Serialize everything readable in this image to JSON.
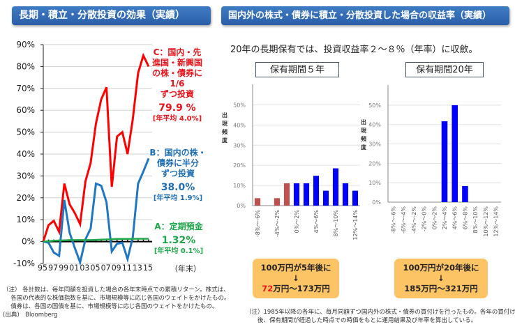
{
  "left_panel": {
    "banner": "長期・積立・分散投資の効果（実績）",
    "labels": {
      "C": {
        "line1": "C：国内・先",
        "line2": "進国・新興国",
        "line3": "の株・債券に",
        "line4": "1/6",
        "line5": "ずつ投資",
        "result": "79.9 %",
        "annual": "[年平均 4.0%]",
        "color": "#e8131a"
      },
      "B": {
        "line1": "B：国内の株・",
        "line2": "債券に半分",
        "line3": "ずつ投資",
        "result": "38.0%",
        "annual": "[年平均 1.9%]",
        "color": "#1f6fb5"
      },
      "A": {
        "line1": "A：定期預金",
        "result": "1.32%",
        "annual": "[年平均 0.1%]",
        "color": "#1ea64a"
      }
    },
    "x_unit_label": "（年末）",
    "note": [
      "（注） 各計数は、毎年同額を投資した場合の各年末時点での累積リターン。株式は、",
      "　 各国の代表的な株価指数を基に、市場規模等に応じ各国のウェイトをかけたもの。",
      "　 債券は、各国の国債を基に、市場規模等に応じ各国のウェイトをかけたもの。",
      "(出典)　Bloomberg"
    ]
  },
  "right_panel": {
    "banner": "国内外の株式・債券に積立・分散投資した場合の収益率（実績）",
    "subtitle": "20年の長期保有では、投資収益率２～８％（年率）に収斂。",
    "y_axis_label": [
      "出",
      "現",
      "頻",
      "度"
    ],
    "box_5y": {
      "line1": "100万円が5年後に",
      "arrow": "↓",
      "low": "72",
      "rest": "万円～173万円"
    },
    "box_20y": {
      "line1": "100万円が20年後に",
      "arrow": "↓",
      "text": "185万円～321万円"
    },
    "note": [
      "（注）1985年以降の各年に、毎月同額ずつ国内外の株式・債券の買付けを行ったもの。各年の買付け",
      "　　後、保有期間が経過した時点での時価をもとに運用結果及び年率を算出している。"
    ]
  },
  "chart_data": [
    {
      "type": "line",
      "title": "長期・積立・分散投資の効果（実績）",
      "xlabel": "（年末）",
      "ylabel": "",
      "x": [
        "95",
        "96",
        "97",
        "98",
        "99",
        "00",
        "01",
        "02",
        "03",
        "04",
        "05",
        "06",
        "07",
        "08",
        "09",
        "10",
        "11",
        "12",
        "13",
        "14",
        "15"
      ],
      "x_tick_labels": [
        "95",
        "97",
        "99",
        "01",
        "03",
        "05",
        "07",
        "09",
        "11",
        "13",
        "15"
      ],
      "yticks": [
        "90%",
        "80%",
        "70%",
        "60%",
        "50%",
        "40%",
        "30%",
        "20%",
        "10%",
        "0%",
        "-10%"
      ],
      "ylim": [
        -10,
        90
      ],
      "grid": true,
      "series": [
        {
          "name": "C：国内・先進国・新興国の株・債券に1/6ずつ投資",
          "color": "#ff0000",
          "values": [
            0,
            7.5,
            9.5,
            4.5,
            26.5,
            17,
            13,
            8,
            27.5,
            36,
            54,
            65,
            70.5,
            25,
            48,
            50,
            40,
            56,
            77,
            85,
            80
          ]
        },
        {
          "name": "B：国内の株・債券に半分ずつ投資",
          "color": "#1f77c4",
          "values": [
            0,
            -0.5,
            -5,
            -6.5,
            19,
            4,
            -3,
            -9.5,
            1,
            6,
            26.5,
            25.5,
            18,
            -4.5,
            -1,
            -0.5,
            -8,
            2,
            26.5,
            32,
            38
          ]
        },
        {
          "name": "A：定期預金",
          "color": "#21a84b",
          "values": [
            0,
            0.2,
            0.4,
            0.5,
            0.6,
            0.7,
            0.7,
            0.7,
            0.7,
            0.7,
            0.8,
            0.9,
            1.0,
            1.1,
            1.2,
            1.2,
            1.25,
            1.28,
            1.3,
            1.31,
            1.32
          ]
        }
      ]
    },
    {
      "type": "bar",
      "title": "保有期間５年",
      "ylabel": "出現頻度",
      "categories": [
        "-8%～-6%",
        "-6%～-4%",
        "-4%～-2%",
        "-2%～0%",
        "0%～2%",
        "2%～4%",
        "4%～6%",
        "6%～8%",
        "8%～10%",
        "10%～12%",
        "12%～14%"
      ],
      "tick_labels_shown": [
        "-8%～-6%",
        "",
        "-4%～-2%",
        "",
        "0%～2%",
        "",
        "4%～6%",
        "",
        "8%～10%",
        "",
        "12%～14%"
      ],
      "values": [
        3.7,
        0,
        3.7,
        11.1,
        11.1,
        11.1,
        14.8,
        7.4,
        18.5,
        11.1,
        7.4
      ],
      "colors": [
        "#c0504d",
        "#c0504d",
        "#c0504d",
        "#c0504d",
        "#0000ff",
        "#0000ff",
        "#0000ff",
        "#0000ff",
        "#0000ff",
        "#0000ff",
        "#0000ff"
      ],
      "yticks": [
        "0%",
        "10%",
        "20%",
        "30%",
        "40%",
        "50%"
      ],
      "ylim": [
        0,
        55
      ],
      "grid": true
    },
    {
      "type": "bar",
      "title": "保有期間20年",
      "ylabel": "出現頻度",
      "categories": [
        "-8%～-6%",
        "-6%～-4%",
        "-4%～-2%",
        "-2%～0%",
        "0%～2%",
        "2%～4%",
        "4%～6%",
        "6%～8%",
        "8%～10%",
        "10%～12%",
        "12%～14%"
      ],
      "tick_labels_shown": [
        "-8%～-6%",
        "-6%～-4%",
        "-4%～-2%",
        "-2%～0%",
        "0%～2%",
        "2%～4%",
        "4%～6%",
        "6%～8%",
        "8%～10%",
        "10%～12%",
        "12%～14%"
      ],
      "values": [
        0,
        0,
        0,
        0,
        0,
        41.7,
        50,
        8.3,
        0,
        0,
        0
      ],
      "colors": [
        "#0000ff",
        "#0000ff",
        "#0000ff",
        "#0000ff",
        "#0000ff",
        "#0000ff",
        "#0000ff",
        "#0000ff",
        "#0000ff",
        "#0000ff",
        "#0000ff"
      ],
      "yticks": [
        "0%",
        "10%",
        "20%",
        "30%",
        "40%",
        "50%"
      ],
      "ylim": [
        0,
        55
      ],
      "grid": true
    }
  ]
}
